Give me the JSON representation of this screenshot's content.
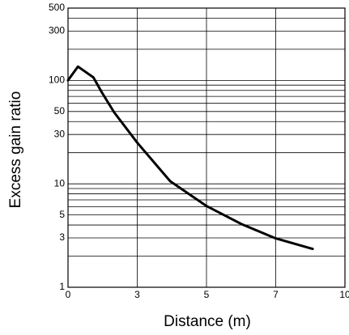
{
  "chart_data": {
    "type": "line",
    "x_label": "Distance (m)",
    "y_label": "Excess gain ratio",
    "x": [
      0,
      0.43,
      1.1,
      1.46,
      2.0,
      3.0,
      3.95,
      5.0,
      6.0,
      7.0,
      8.6
    ],
    "values": [
      100,
      136,
      107,
      77,
      49,
      25,
      10.6,
      6.1,
      4.1,
      2.97,
      2.35
    ],
    "color": "#000000",
    "xlim": [
      0,
      10
    ],
    "xticks": [
      0,
      3,
      5,
      7,
      10
    ],
    "ylim": [
      1,
      500
    ],
    "yticks": [
      1,
      3,
      5,
      10,
      30,
      50,
      100,
      300,
      500
    ],
    "ygrid": [
      2,
      3,
      4,
      5,
      6,
      7,
      8,
      9,
      10,
      20,
      30,
      40,
      50,
      60,
      70,
      80,
      90,
      100,
      200,
      300,
      400
    ],
    "log_y": true,
    "grid": true
  }
}
